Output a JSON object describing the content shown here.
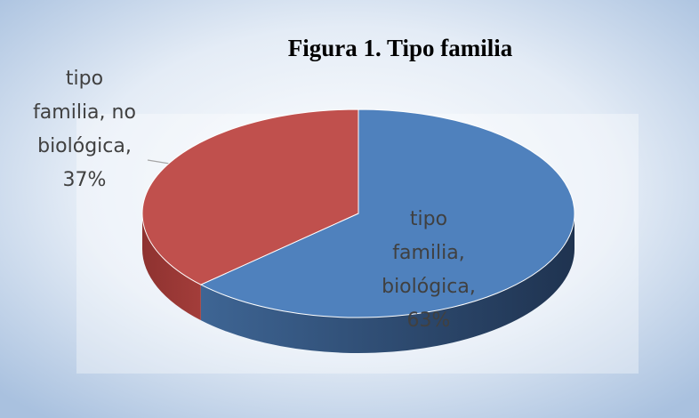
{
  "chart_data": {
    "type": "pie",
    "title": "Figura 1. Tipo familia",
    "categories": [
      "tipo familia, biológica",
      "tipo familia, no biológica"
    ],
    "values": [
      63,
      37
    ],
    "value_labels": [
      "tipo familia, biológica, 63%",
      "tipo familia, no biológica, 37%"
    ],
    "colors": [
      "#4f81bd",
      "#c0504d"
    ],
    "three_d": true
  }
}
